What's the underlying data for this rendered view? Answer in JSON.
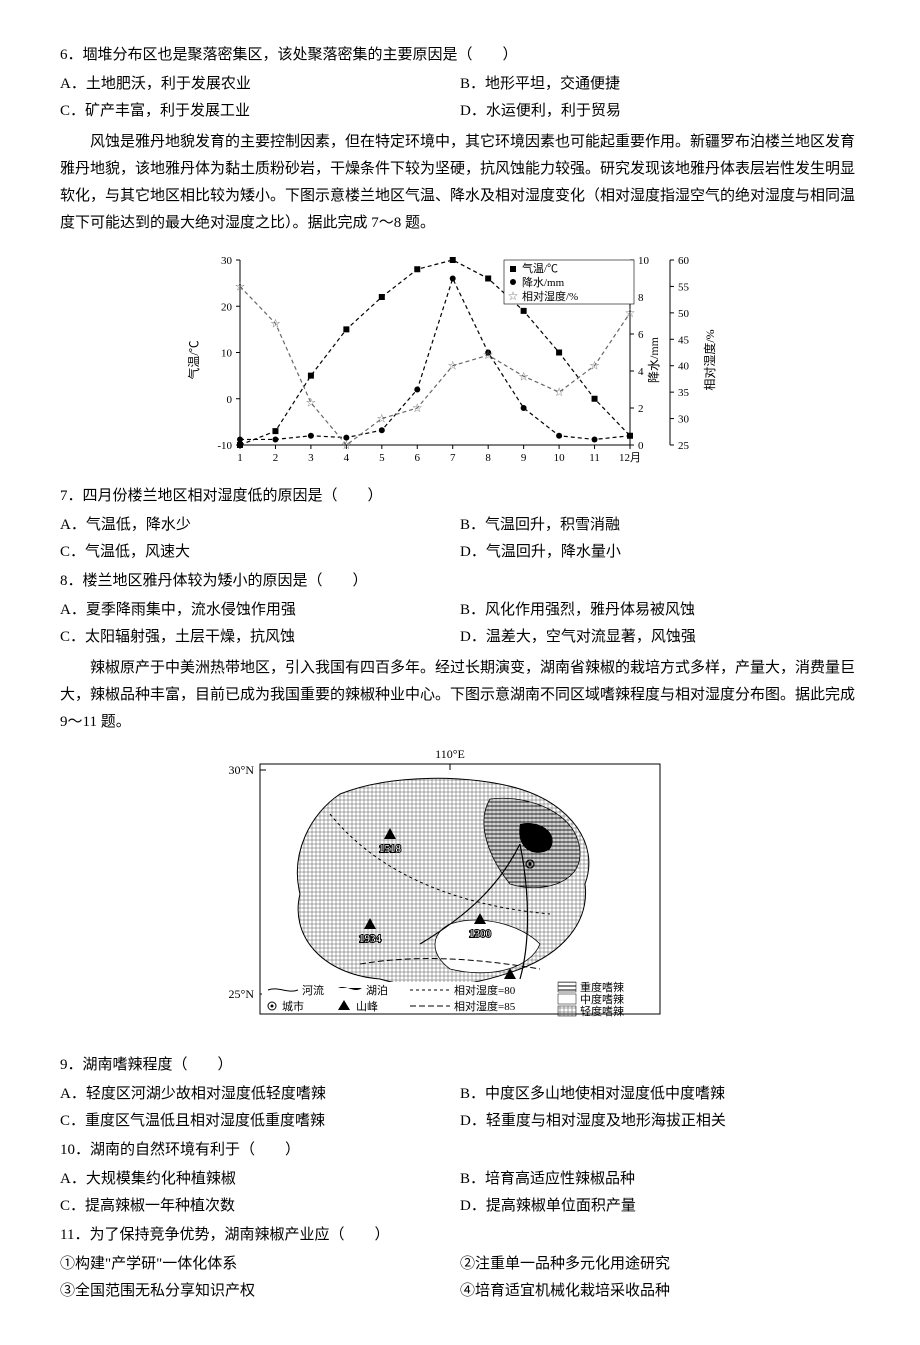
{
  "q6": {
    "stem": "6．堌堆分布区也是聚落密集区，该处聚落密集的主要原因是（　　）",
    "A": "A．土地肥沃，利于发展农业",
    "B": "B．地形平坦，交通便捷",
    "C": "C．矿产丰富，利于发展工业",
    "D": "D．水运便利，利于贸易"
  },
  "passage1": "风蚀是雅丹地貌发育的主要控制因素，但在特定环境中，其它环境因素也可能起重要作用。新疆罗布泊楼兰地区发育雅丹地貌，该地雅丹体为黏土质粉砂岩，干燥条件下较为坚硬，抗风蚀能力较强。研究发现该地雅丹体表层岩性发生明显软化，与其它地区相比较为矮小。下图示意楼兰地区气温、降水及相对湿度变化（相对湿度指湿空气的绝对湿度与相同温度下可能达到的最大绝对湿度之比）。据此完成 7～8 题。",
  "chart1": {
    "type": "line",
    "months": [
      "1",
      "2",
      "3",
      "4",
      "5",
      "6",
      "7",
      "8",
      "9",
      "10",
      "11",
      "12月"
    ],
    "temp": [
      -10,
      -7,
      5,
      15,
      22,
      28,
      30,
      26,
      19,
      10,
      0,
      -8
    ],
    "precip": [
      0.3,
      0.3,
      0.5,
      0.4,
      0.8,
      3,
      9,
      5,
      2,
      0.5,
      0.3,
      0.5
    ],
    "humidity": [
      55,
      48,
      33,
      25,
      30,
      32,
      40,
      42,
      38,
      35,
      40,
      50
    ],
    "temp_color": "#000000",
    "precip_color": "#000000",
    "humidity_color": "#666666",
    "y_temp": {
      "min": -10,
      "max": 30,
      "ticks": [
        -10,
        0,
        10,
        20,
        30
      ],
      "label": "气温/℃"
    },
    "y_precip": {
      "min": 0,
      "max": 10,
      "ticks": [
        0,
        2,
        4,
        6,
        8,
        10
      ],
      "label": "降水/mm"
    },
    "y_humidity": {
      "min": 25,
      "max": 60,
      "ticks": [
        25,
        30,
        35,
        40,
        45,
        50,
        55,
        60
      ],
      "label": "相对湿度/%"
    },
    "legend": {
      "temp": "气温/℃",
      "precip": "降水/mm",
      "humidity": "相对湿度/%"
    },
    "background_color": "#ffffff"
  },
  "q7": {
    "stem": "7．四月份楼兰地区相对湿度低的原因是（　　）",
    "A": "A．气温低，降水少",
    "B": "B．气温回升，积雪消融",
    "C": "C．气温低，风速大",
    "D": "D．气温回升，降水量小"
  },
  "q8": {
    "stem": "8．楼兰地区雅丹体较为矮小的原因是（　　）",
    "A": "A．夏季降雨集中，流水侵蚀作用强",
    "B": "B．风化作用强烈，雅丹体易被风蚀",
    "C": "C．太阳辐射强，土层干燥，抗风蚀",
    "D": "D．温差大，空气对流显著，风蚀强"
  },
  "passage2": "辣椒原产于中美洲热带地区，引入我国有四百多年。经过长期演变，湖南省辣椒的栽培方式多样，产量大，消费量巨大，辣椒品种丰富，目前已成为我国重要的辣椒种业中心。下图示意湖南不同区域嗜辣程度与相对湿度分布图。据此完成 9～11 题。",
  "map": {
    "type": "map",
    "lon_label": "110°E",
    "lat_top": "30°N",
    "lat_bottom": "25°N",
    "peaks": [
      "1518",
      "1934",
      "1300",
      "1554"
    ],
    "legend_lines": {
      "river": "河流",
      "lake": "湖泊",
      "city": "城市",
      "peak": "山峰",
      "rh80": "相对湿度=80",
      "rh85": "相对湿度=85",
      "heavy": "重度嗜辣",
      "medium": "中度嗜辣",
      "light": "轻度嗜辣"
    }
  },
  "q9": {
    "stem": "9．湖南嗜辣程度（　　）",
    "A": "A．轻度区河湖少故相对湿度低轻度嗜辣",
    "B": "B．中度区多山地使相对湿度低中度嗜辣",
    "C": "C．重度区气温低且相对湿度低重度嗜辣",
    "D": "D．轻重度与相对湿度及地形海拔正相关"
  },
  "q10": {
    "stem": "10．湖南的自然环境有利于（　　）",
    "A": "A．大规模集约化种植辣椒",
    "B": "B．培育高适应性辣椒品种",
    "C": "C．提高辣椒一年种植次数",
    "D": "D．提高辣椒单位面积产量"
  },
  "q11": {
    "stem": "11．为了保持竞争优势，湖南辣椒产业应（　　）",
    "o1": "①构建\"产学研\"一体化体系",
    "o2": "②注重单一品种多元化用途研究",
    "o3": "③全国范围无私分享知识产权",
    "o4": "④培育适宜机械化栽培采收品种"
  }
}
